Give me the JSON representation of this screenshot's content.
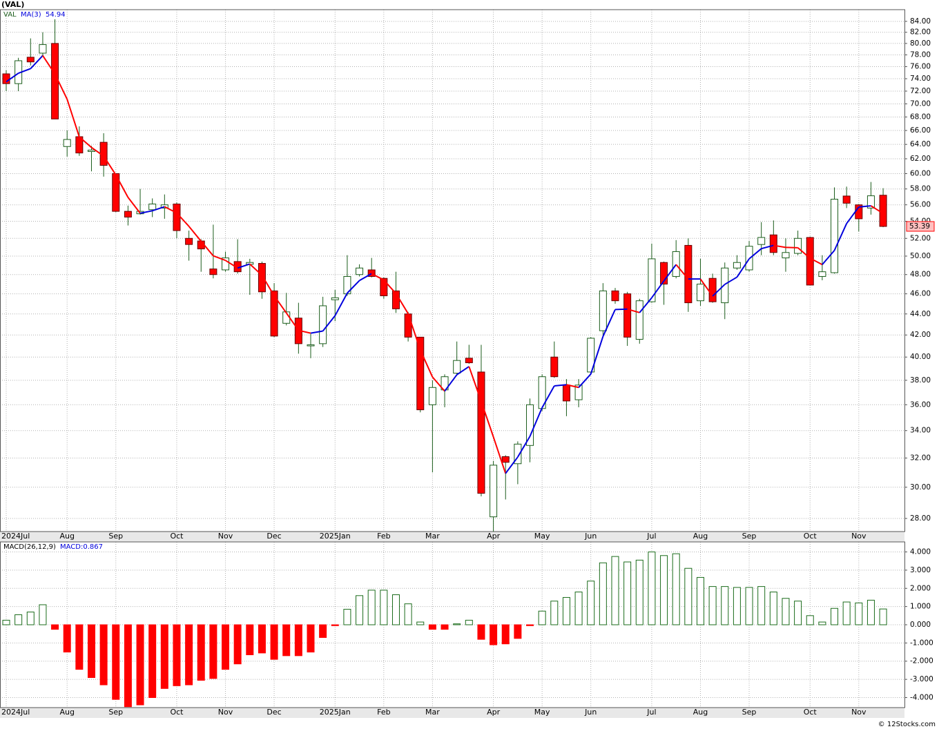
{
  "chart_data": [
    {
      "type": "candlestick",
      "title": "(VAL)",
      "scale": "log",
      "grid": true,
      "categories": [
        "2024Jul",
        null,
        null,
        null,
        null,
        "Aug",
        null,
        null,
        null,
        "Sep",
        null,
        null,
        null,
        null,
        "Oct",
        null,
        null,
        null,
        "Nov",
        null,
        null,
        null,
        "Dec",
        null,
        null,
        null,
        null,
        "2025Jan",
        null,
        null,
        null,
        "Feb",
        null,
        null,
        null,
        "Mar",
        null,
        null,
        null,
        null,
        "Apr",
        null,
        null,
        null,
        "May",
        null,
        null,
        null,
        "Jun",
        null,
        null,
        null,
        null,
        "Jul",
        null,
        null,
        null,
        "Aug",
        null,
        null,
        null,
        "Sep",
        null,
        null,
        null,
        null,
        "Oct",
        null,
        null,
        null,
        "Nov",
        null,
        null
      ],
      "series": [
        {
          "name": "VAL",
          "color": "#ff0000",
          "up_color": "#ffffff",
          "outline_color": "#1a5c1a",
          "open": [
            74.8,
            73.2,
            77.6,
            78.3,
            80.0,
            63.7,
            65.1,
            63.0,
            64.3,
            60.0,
            55.2,
            54.9,
            55.4,
            55.6,
            56.1,
            52.0,
            51.7,
            48.6,
            48.5,
            49.4,
            49.1,
            49.2,
            46.3,
            43.1,
            43.6,
            41.0,
            41.2,
            45.4,
            46.0,
            48.0,
            48.5,
            47.6,
            46.3,
            44.0,
            41.8,
            36.0,
            37.2,
            38.6,
            39.9,
            38.7,
            28.1,
            32.1,
            31.6,
            32.9,
            35.7,
            40.0,
            37.6,
            36.4,
            38.7,
            42.4,
            46.3,
            46.0,
            41.6,
            45.2,
            49.3,
            47.8,
            51.2,
            45.3,
            47.6,
            45.1,
            48.7,
            48.5,
            51.3,
            52.4,
            49.8,
            50.3,
            52.1,
            47.8,
            48.2,
            57.1,
            56.0,
            55.6,
            57.2
          ],
          "high": [
            75.4,
            77.5,
            80.9,
            82.0,
            84.4,
            66.0,
            66.6,
            63.8,
            65.6,
            60.0,
            55.9,
            58.0,
            56.8,
            57.3,
            56.3,
            52.9,
            51.9,
            53.6,
            50.5,
            51.9,
            49.7,
            49.4,
            47.1,
            46.1,
            45.1,
            42.1,
            45.7,
            46.4,
            50.1,
            49.1,
            49.8,
            47.7,
            48.3,
            44.2,
            41.8,
            38.0,
            38.5,
            41.4,
            41.1,
            41.1,
            31.8,
            32.2,
            33.2,
            36.5,
            38.5,
            41.4,
            38.1,
            38.1,
            41.8,
            47.1,
            46.6,
            46.2,
            45.5,
            51.4,
            49.4,
            51.8,
            52.0,
            49.7,
            48.1,
            49.3,
            50.1,
            51.7,
            53.9,
            54.1,
            52.0,
            52.9,
            52.2,
            50.1,
            58.2,
            58.3,
            56.1,
            58.9,
            58.1
          ],
          "low": [
            72.0,
            72.0,
            76.2,
            77.8,
            67.7,
            62.3,
            62.4,
            60.3,
            59.6,
            55.1,
            53.5,
            54.8,
            54.5,
            54.3,
            52.0,
            49.5,
            48.3,
            47.6,
            48.3,
            48.1,
            45.9,
            45.5,
            41.8,
            42.9,
            40.3,
            39.9,
            40.9,
            43.3,
            45.8,
            47.8,
            47.7,
            45.5,
            44.1,
            41.4,
            35.4,
            31.0,
            35.8,
            38.4,
            39.4,
            29.4,
            27.2,
            29.2,
            30.2,
            31.7,
            35.5,
            38.2,
            35.1,
            35.8,
            38.5,
            41.9,
            45.0,
            41.0,
            41.2,
            45.1,
            44.9,
            47.6,
            44.2,
            44.8,
            45.1,
            43.5,
            48.5,
            48.3,
            50.1,
            50.1,
            48.3,
            50.1,
            46.9,
            47.4,
            48.1,
            55.6,
            52.8,
            54.8,
            53.3
          ],
          "close": [
            73.2,
            77.0,
            76.8,
            79.8,
            67.7,
            64.7,
            62.8,
            63.2,
            61.1,
            55.2,
            54.5,
            55.2,
            56.1,
            56.0,
            52.9,
            51.3,
            50.8,
            48.0,
            49.8,
            48.3,
            49.3,
            46.2,
            41.9,
            44.2,
            41.2,
            41.1,
            44.8,
            45.6,
            47.8,
            48.7,
            47.8,
            45.8,
            44.5,
            41.8,
            35.6,
            37.4,
            38.3,
            39.7,
            39.5,
            29.6,
            31.5,
            31.7,
            33.0,
            36.0,
            38.3,
            38.3,
            36.3,
            37.6,
            41.7,
            46.3,
            45.3,
            41.8,
            45.3,
            49.7,
            47.0,
            50.5,
            45.1,
            47.0,
            45.2,
            48.7,
            49.3,
            51.1,
            52.1,
            50.4,
            50.4,
            52.0,
            46.9,
            48.3,
            56.7,
            56.2,
            54.3,
            57.13,
            53.39
          ]
        },
        {
          "name": "MA(3)",
          "color": "#0000dd",
          "down_color": "#ff0000",
          "values": [
            73.5,
            74.9,
            75.67,
            77.87,
            74.77,
            70.73,
            65.07,
            63.57,
            62.37,
            59.83,
            56.93,
            54.97,
            55.27,
            55.77,
            55.0,
            53.4,
            51.67,
            50.03,
            49.53,
            48.7,
            49.13,
            47.93,
            45.8,
            44.1,
            42.43,
            42.17,
            42.37,
            43.83,
            46.07,
            47.37,
            48.1,
            47.43,
            46.03,
            44.03,
            40.63,
            38.27,
            37.1,
            38.47,
            39.17,
            36.27,
            33.53,
            30.93,
            32.07,
            33.57,
            35.77,
            37.53,
            37.63,
            37.4,
            38.53,
            41.87,
            44.43,
            44.47,
            44.13,
            45.6,
            47.33,
            49.07,
            47.53,
            47.53,
            45.77,
            46.97,
            47.73,
            49.7,
            50.83,
            51.2,
            50.97,
            50.93,
            49.77,
            49.07,
            50.63,
            53.73,
            55.73,
            55.88,
            54.94
          ]
        }
      ],
      "ylim": [
        27.2,
        86.2
      ],
      "yticks": [
        {
          "value": 28,
          "label": "28.00"
        },
        {
          "value": 30,
          "label": "30.00"
        },
        {
          "value": 32,
          "label": "32.00"
        },
        {
          "value": 34,
          "label": "34.00"
        },
        {
          "value": 36,
          "label": "36.00"
        },
        {
          "value": 38,
          "label": "38.00"
        },
        {
          "value": 40,
          "label": "40.00"
        },
        {
          "value": 42,
          "label": "42.00"
        },
        {
          "value": 44,
          "label": "44.00"
        },
        {
          "value": 46,
          "label": "46.00"
        },
        {
          "value": 48,
          "label": "48.00"
        },
        {
          "value": 50,
          "label": "50.00"
        },
        {
          "value": 52,
          "label": "52.00"
        },
        {
          "value": 54,
          "label": "54.00"
        },
        {
          "value": 56,
          "label": "56.00"
        },
        {
          "value": 58,
          "label": "58.00"
        },
        {
          "value": 60,
          "label": "60.00"
        },
        {
          "value": 62,
          "label": "62.00"
        },
        {
          "value": 64,
          "label": "64.00"
        },
        {
          "value": 66,
          "label": "66.00"
        },
        {
          "value": 68,
          "label": "68.00"
        },
        {
          "value": 70,
          "label": "70.00"
        },
        {
          "value": 72,
          "label": "72.00"
        },
        {
          "value": 74,
          "label": "74.00"
        },
        {
          "value": 76,
          "label": "76.00"
        },
        {
          "value": 78,
          "label": "78.00"
        },
        {
          "value": 80,
          "label": "80.00"
        },
        {
          "value": 82,
          "label": "82.00"
        },
        {
          "value": 84,
          "label": "84.00"
        }
      ]
    },
    {
      "type": "bar",
      "title": "MACD(26,12,9)",
      "legend": "MACD:0.867",
      "grid": true,
      "color": "#1a6b1a",
      "negative_color": "#ff0000",
      "categories": [
        "2024Jul",
        null,
        null,
        null,
        null,
        "Aug",
        null,
        null,
        null,
        "Sep",
        null,
        null,
        null,
        null,
        "Oct",
        null,
        null,
        null,
        "Nov",
        null,
        null,
        null,
        "Dec",
        null,
        null,
        null,
        null,
        "2025Jan",
        null,
        null,
        null,
        "Feb",
        null,
        null,
        null,
        "Mar",
        null,
        null,
        null,
        null,
        "Apr",
        null,
        null,
        null,
        "May",
        null,
        null,
        null,
        "Jun",
        null,
        null,
        null,
        null,
        "Jul",
        null,
        null,
        null,
        "Aug",
        null,
        null,
        null,
        "Sep",
        null,
        null,
        null,
        null,
        "Oct",
        null,
        null,
        null,
        "Nov",
        null,
        null
      ],
      "values": [
        0.25,
        0.55,
        0.7,
        1.1,
        -0.25,
        -1.5,
        -2.45,
        -2.9,
        -3.3,
        -4.1,
        -4.5,
        -4.4,
        -4.0,
        -3.5,
        -3.35,
        -3.3,
        -3.05,
        -2.95,
        -2.45,
        -2.15,
        -1.65,
        -1.55,
        -1.9,
        -1.7,
        -1.7,
        -1.5,
        -0.7,
        -0.05,
        0.85,
        1.6,
        1.9,
        1.9,
        1.65,
        1.15,
        0.15,
        -0.25,
        -0.25,
        0.05,
        0.25,
        -0.8,
        -1.1,
        -1.05,
        -0.75,
        -0.05,
        0.75,
        1.3,
        1.5,
        1.8,
        2.4,
        3.4,
        3.75,
        3.45,
        3.55,
        4.0,
        3.8,
        3.9,
        3.1,
        2.6,
        2.1,
        2.1,
        2.05,
        2.05,
        2.1,
        1.8,
        1.45,
        1.3,
        0.5,
        0.15,
        0.9,
        1.25,
        1.2,
        1.35,
        0.867
      ],
      "ylim": [
        -4.55,
        4.55
      ],
      "yticks": [
        {
          "value": -4,
          "label": "-4.000"
        },
        {
          "value": -3,
          "label": "-3.000"
        },
        {
          "value": -2,
          "label": "-2.000"
        },
        {
          "value": -1,
          "label": "-1.000"
        },
        {
          "value": 0,
          "label": "0.000"
        },
        {
          "value": 1,
          "label": "1.000"
        },
        {
          "value": 2,
          "label": "2.000"
        },
        {
          "value": 3,
          "label": "3.000"
        },
        {
          "value": 4,
          "label": "4.000"
        }
      ]
    }
  ],
  "footer": "© 12Stocks.com"
}
